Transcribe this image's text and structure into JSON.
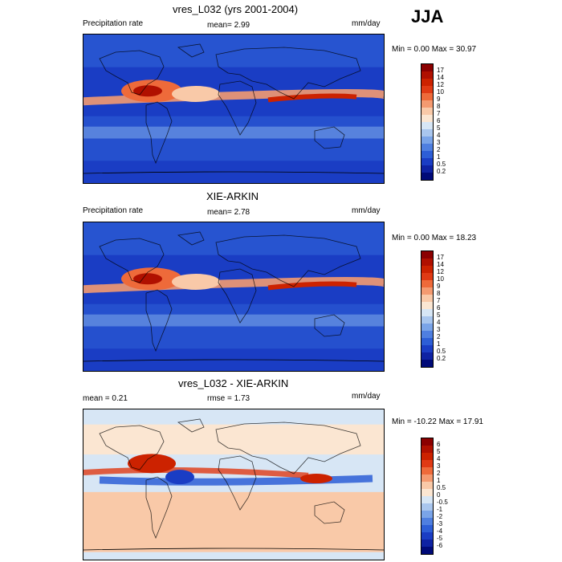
{
  "season": "JJA",
  "panels": [
    {
      "title": "vres_L032 (yrs 2001-2004)",
      "left_label": "Precipitation rate",
      "mean_text": "mean=   2.99",
      "units": "mm/day",
      "minmax": "Min =   0.00 Max =   30.97",
      "colorbar_labels": [
        "17",
        "14",
        "12",
        "10",
        "9",
        "8",
        "7",
        "6",
        "5",
        "4",
        "3",
        "2",
        "1",
        "0.5",
        "0.2"
      ],
      "colors": [
        "#8b0000",
        "#b01000",
        "#cc2200",
        "#e03a14",
        "#ee6a3a",
        "#f49a70",
        "#f9c9a8",
        "#fbe6d2",
        "#d7e6f5",
        "#a9c6ee",
        "#7aa4e8",
        "#4f7fe0",
        "#2d5ed6",
        "#1a3dc4",
        "#0e22a3",
        "#000a78"
      ],
      "field": "model"
    },
    {
      "title": "XIE-ARKIN",
      "left_label": "Precipitation rate",
      "mean_text": "mean=   2.78",
      "units": "mm/day",
      "minmax": "Min =   0.00 Max =   18.23",
      "colorbar_labels": [
        "17",
        "14",
        "12",
        "10",
        "9",
        "8",
        "7",
        "6",
        "5",
        "4",
        "3",
        "2",
        "1",
        "0.5",
        "0.2"
      ],
      "colors": [
        "#8b0000",
        "#b01000",
        "#cc2200",
        "#e03a14",
        "#ee6a3a",
        "#f49a70",
        "#f9c9a8",
        "#fbe6d2",
        "#d7e6f5",
        "#a9c6ee",
        "#7aa4e8",
        "#4f7fe0",
        "#2d5ed6",
        "#1a3dc4",
        "#0e22a3",
        "#000a78"
      ],
      "field": "obs"
    },
    {
      "title": "vres_L032 - XIE-ARKIN",
      "left_label": "mean =    0.21",
      "mean_text": "rmse =    1.73",
      "units": "mm/day",
      "minmax": "Min = -10.22 Max =   17.91",
      "colorbar_labels": [
        "6",
        "5",
        "4",
        "3",
        "2",
        "1",
        "0.5",
        "0",
        "-0.5",
        "-1",
        "-2",
        "-3",
        "-4",
        "-5",
        "-6"
      ],
      "colors": [
        "#8b0000",
        "#b01000",
        "#cc2200",
        "#e03a14",
        "#ee6a3a",
        "#f49a70",
        "#f9c9a8",
        "#fbe6d2",
        "#d7e6f5",
        "#a9c6ee",
        "#7aa4e8",
        "#4f7fe0",
        "#2d5ed6",
        "#1a3dc4",
        "#0e22a3",
        "#000a78"
      ],
      "field": "diff"
    }
  ]
}
